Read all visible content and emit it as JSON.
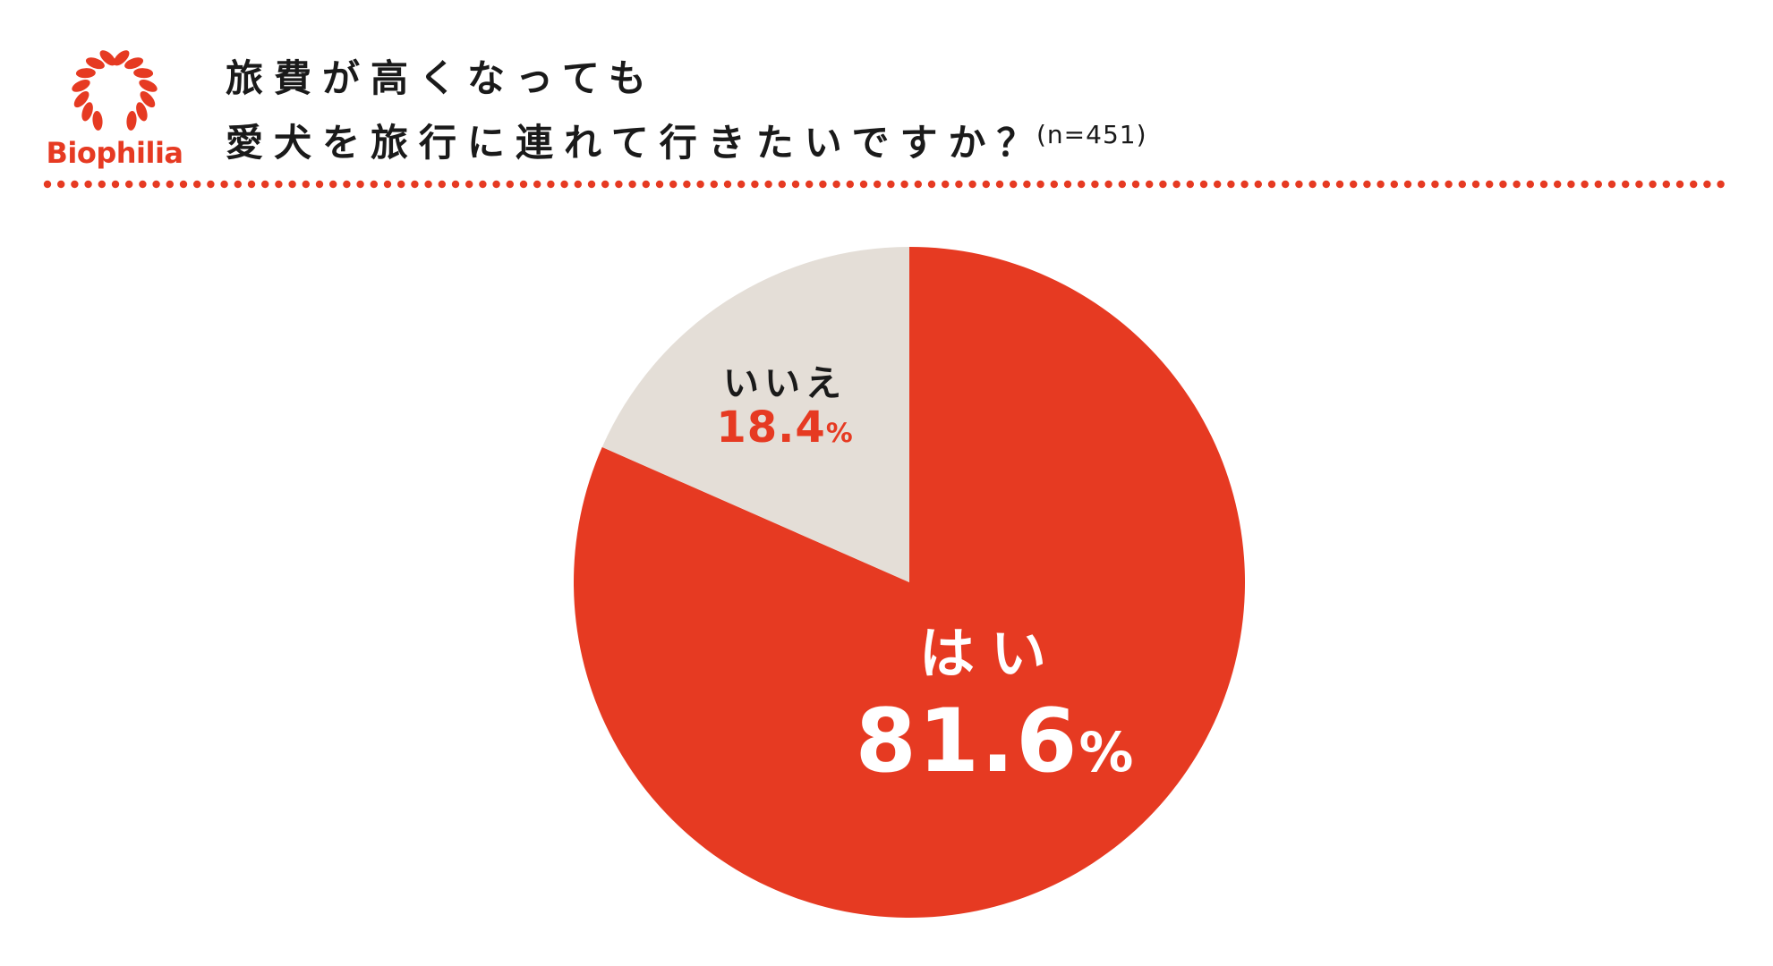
{
  "brand": {
    "name": "Biophilia",
    "color": "#e63a22"
  },
  "title": {
    "line1": "旅費が高くなっても",
    "line2": "愛犬を旅行に連れて行きたいですか？"
  },
  "sample_note": "(n=451)",
  "colors": {
    "accent": "#e63a22",
    "secondary": "#e4ded7",
    "text": "#1a1a1a"
  },
  "chart_data": {
    "type": "pie",
    "title": "旅費が高くなっても 愛犬を旅行に連れて行きたいですか？",
    "n": 451,
    "slices": [
      {
        "label": "はい",
        "value": 81.6,
        "display": "81.6",
        "color": "#e63a22"
      },
      {
        "label": "いいえ",
        "value": 18.4,
        "display": "18.4",
        "color": "#e4ded7"
      }
    ],
    "unit": "%",
    "start": "top, clockwise"
  }
}
